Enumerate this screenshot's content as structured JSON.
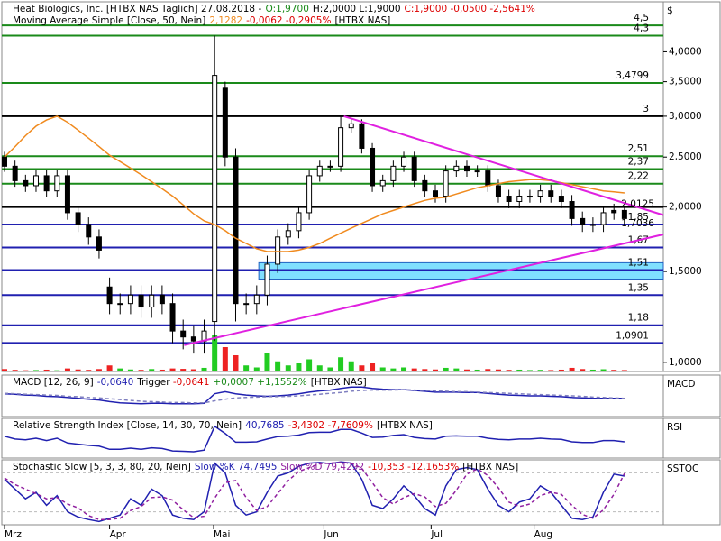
{
  "chart_data": [
    {
      "type": "candlestick",
      "log": true,
      "panel_label": "$",
      "header": [
        [
          {
            "text": "Heat Biologics, Inc. [HTBX NAS  Täglich] 27.08.2018 -",
            "color": "#000000"
          },
          {
            "text": "O:1,9700",
            "color": "#1a8a1a"
          },
          {
            "text": "H:2,0000 L:1,9000",
            "color": "#000000"
          },
          {
            "text": "C:1,9000 -0,0500 -2,5641%",
            "color": "#dd0000"
          }
        ],
        [
          {
            "text": "Moving Average Simple [Close, 50, Nein]",
            "color": "#000000"
          },
          {
            "text": "2,1282",
            "color": "#f08a1e"
          },
          {
            "text": "-0,0062 -0,2905%",
            "color": "#dd0000"
          },
          {
            "text": "[HTBX NAS]",
            "color": "#000000"
          }
        ]
      ],
      "x": [
        0,
        1,
        2,
        3,
        4,
        5,
        6,
        7,
        8,
        9,
        10,
        11,
        12,
        13,
        14,
        15,
        16,
        17,
        18,
        19,
        20,
        21,
        22,
        23,
        24,
        25,
        26,
        27,
        28,
        29,
        30,
        31,
        32,
        33,
        34,
        35,
        36,
        37,
        38,
        39,
        40,
        41,
        42,
        43,
        44,
        45,
        46,
        47,
        48,
        49,
        50,
        51,
        52,
        53,
        54,
        55,
        56,
        57,
        58,
        59
      ],
      "xlim": [
        0,
        62.7
      ],
      "xticks": [
        {
          "value": 0,
          "label": "Mrz"
        },
        {
          "value": 10,
          "label": "Apr"
        },
        {
          "value": 19.9,
          "label": "Mai"
        },
        {
          "value": 30.4,
          "label": "Jun"
        },
        {
          "value": 40.6,
          "label": "Jul"
        },
        {
          "value": 50.4,
          "label": "Aug"
        }
      ],
      "ylim": [
        0.96,
        5.0
      ],
      "yticks": [
        {
          "value": 1,
          "label": "1,0000"
        },
        {
          "value": 1.5,
          "label": "1,5000"
        },
        {
          "value": 2,
          "label": "2,0000"
        },
        {
          "value": 2.5,
          "label": "2,5000"
        },
        {
          "value": 3,
          "label": "3,0000"
        },
        {
          "value": 3.5,
          "label": "3,5000"
        },
        {
          "value": 4,
          "label": "4,0000"
        }
      ],
      "up_color": "#ffffff",
      "down_color": "#000000",
      "open": [
        2.5,
        2.4,
        2.25,
        2.2,
        2.3,
        2.15,
        2.3,
        1.95,
        1.85,
        1.75,
        1.4,
        1.3,
        1.3,
        1.35,
        1.28,
        1.35,
        1.3,
        1.15,
        1.12,
        1.1,
        1.2,
        3.4,
        2.5,
        1.3,
        1.3,
        1.35,
        1.55,
        1.75,
        1.8,
        1.95,
        2.3,
        2.4,
        2.4,
        2.85,
        2.9,
        2.6,
        2.2,
        2.25,
        2.4,
        2.5,
        2.25,
        2.15,
        2.1,
        2.35,
        2.4,
        2.35,
        2.35,
        2.2,
        2.1,
        2.05,
        2.1,
        2.1,
        2.15,
        2.1,
        2.05,
        1.9,
        1.85,
        1.85,
        1.97,
        1.97
      ],
      "high": [
        2.56,
        2.46,
        2.31,
        2.36,
        2.36,
        2.36,
        2.36,
        2.01,
        1.91,
        1.81,
        1.46,
        1.36,
        1.41,
        1.41,
        1.41,
        1.41,
        1.36,
        1.21,
        1.18,
        1.21,
        4.3,
        3.5,
        2.6,
        1.36,
        1.41,
        1.61,
        1.81,
        1.86,
        2.01,
        2.36,
        2.46,
        2.46,
        3.0,
        2.96,
        2.96,
        2.66,
        2.31,
        2.46,
        2.56,
        2.56,
        2.31,
        2.21,
        2.41,
        2.46,
        2.46,
        2.41,
        2.41,
        2.26,
        2.16,
        2.16,
        2.16,
        2.21,
        2.21,
        2.16,
        2.11,
        1.96,
        1.91,
        2.01,
        2.03,
        2.0
      ],
      "low": [
        2.34,
        2.19,
        2.14,
        2.14,
        2.09,
        2.09,
        1.89,
        1.79,
        1.69,
        1.59,
        1.24,
        1.24,
        1.24,
        1.22,
        1.22,
        1.24,
        1.09,
        1.06,
        1.04,
        1.04,
        1.1,
        2.4,
        1.2,
        1.24,
        1.24,
        1.29,
        1.49,
        1.69,
        1.74,
        1.89,
        2.24,
        2.34,
        2.34,
        2.79,
        2.54,
        2.14,
        2.14,
        2.19,
        2.34,
        2.19,
        2.09,
        2.04,
        2.04,
        2.29,
        2.29,
        2.29,
        2.14,
        2.04,
        1.99,
        1.99,
        2.04,
        2.04,
        2.04,
        1.99,
        1.84,
        1.79,
        1.79,
        1.79,
        1.89,
        1.9
      ],
      "close": [
        2.4,
        2.25,
        2.2,
        2.3,
        2.15,
        2.3,
        1.95,
        1.85,
        1.75,
        1.65,
        1.3,
        1.3,
        1.35,
        1.28,
        1.35,
        1.3,
        1.15,
        1.12,
        1.1,
        1.15,
        3.6,
        2.5,
        1.3,
        1.3,
        1.35,
        1.55,
        1.75,
        1.8,
        1.95,
        2.3,
        2.4,
        2.4,
        2.85,
        2.9,
        2.6,
        2.2,
        2.25,
        2.4,
        2.5,
        2.25,
        2.15,
        2.1,
        2.35,
        2.4,
        2.35,
        2.35,
        2.2,
        2.1,
        2.05,
        2.1,
        2.1,
        2.15,
        2.1,
        2.05,
        1.9,
        1.85,
        1.85,
        1.95,
        1.95,
        1.9
      ],
      "volume": [
        1.2,
        0.8,
        0.6,
        0.7,
        0.9,
        0.6,
        1.5,
        1.0,
        0.8,
        1.2,
        3.0,
        1.5,
        1.0,
        0.8,
        1.2,
        0.9,
        1.5,
        1.3,
        1.1,
        1.8,
        18,
        12,
        8,
        3,
        2,
        9,
        5,
        3,
        4,
        6,
        3,
        2,
        7,
        5,
        3,
        4,
        2,
        1.5,
        2,
        1.5,
        1.2,
        1,
        1.8,
        1.5,
        1,
        0.9,
        1.2,
        1,
        0.8,
        0.9,
        0.7,
        0.8,
        0.7,
        0.9,
        1.8,
        1.2,
        0.9,
        1.1,
        0.8,
        0.7
      ],
      "vlim": [
        0,
        20
      ],
      "volume_up_color": "#22cc22",
      "volume_down_color": "#ee2222",
      "series": [
        {
          "name": "Moving Average Simple",
          "color": "#f08a1e",
          "values": [
            2.5,
            2.62,
            2.75,
            2.87,
            2.95,
            3.0,
            2.92,
            2.82,
            2.72,
            2.62,
            2.52,
            2.45,
            2.38,
            2.31,
            2.24,
            2.17,
            2.1,
            2.02,
            1.94,
            1.88,
            1.85,
            1.8,
            1.74,
            1.7,
            1.66,
            1.64,
            1.64,
            1.64,
            1.65,
            1.67,
            1.7,
            1.74,
            1.78,
            1.82,
            1.86,
            1.9,
            1.94,
            1.97,
            2.0,
            2.03,
            2.06,
            2.08,
            2.09,
            2.12,
            2.15,
            2.18,
            2.2,
            2.22,
            2.24,
            2.25,
            2.26,
            2.26,
            2.25,
            2.23,
            2.21,
            2.19,
            2.17,
            2.15,
            2.14,
            2.13
          ]
        }
      ],
      "levels": [
        {
          "value": 4.5,
          "label": "4,5",
          "color": "#1a8a1a"
        },
        {
          "value": 4.3,
          "label": "4,3",
          "color": "#1a8a1a"
        },
        {
          "value": 3.4799,
          "label": "3,4799",
          "color": "#1a8a1a"
        },
        {
          "value": 3,
          "label": "3",
          "color": "#000000"
        },
        {
          "value": 2.51,
          "label": "2,51",
          "color": "#1a8a1a"
        },
        {
          "value": 2.37,
          "label": "2,37",
          "color": "#1a8a1a"
        },
        {
          "value": 2.22,
          "label": "2,22",
          "color": "#1a8a1a"
        },
        {
          "value": 2,
          "color": "#000000"
        },
        {
          "value": 1.85,
          "label": "1,85",
          "color": "#2020b0"
        },
        {
          "value": 1.67,
          "label": "1,67",
          "color": "#2020b0"
        },
        {
          "value": 1.51,
          "label": "1,51",
          "color": "#2020b0"
        },
        {
          "value": 1.35,
          "label": "1,35",
          "color": "#2020b0"
        },
        {
          "value": 1.18,
          "label": "1,18",
          "color": "#2020b0"
        },
        {
          "value": 1.0901,
          "label": "1,0901",
          "color": "#2020b0"
        }
      ],
      "zones": [
        {
          "x": [
            24.2,
            62.7
          ],
          "values": [
            1.45,
            1.56
          ],
          "color": "#80e0ff"
        }
      ],
      "trendlines": [
        {
          "label": "2,0125",
          "color": "#e020e0",
          "x": [
            32.3,
            62.7
          ],
          "values": [
            3.0,
            1.93
          ]
        },
        {
          "label": "1,7036",
          "color": "#e020e0",
          "x": [
            17.1,
            62.7
          ],
          "values": [
            1.08,
            1.77
          ]
        }
      ]
    },
    {
      "type": "line",
      "panel_label": "MACD",
      "header": [
        [
          {
            "text": "MACD [12, 26, 9]",
            "color": "#000000"
          },
          {
            "text": "-0,0640",
            "color": "#2020b0"
          },
          {
            "text": "Trigger",
            "color": "#000000"
          },
          {
            "text": "-0,0641",
            "color": "#dd0000"
          },
          {
            "text": "+0,0007 +1,1552%",
            "color": "#1a8a1a"
          },
          {
            "text": "[HTBX NAS]",
            "color": "#000000"
          }
        ]
      ],
      "ylim": [
        -0.5,
        0.5
      ],
      "series": [
        {
          "name": "MACD",
          "color": "#2020b0",
          "values": [
            0.05,
            0.04,
            0.02,
            0.01,
            -0.01,
            -0.02,
            -0.04,
            -0.06,
            -0.08,
            -0.1,
            -0.14,
            -0.17,
            -0.18,
            -0.19,
            -0.18,
            -0.18,
            -0.19,
            -0.19,
            -0.19,
            -0.18,
            0.05,
            0.1,
            0.05,
            0.02,
            0.0,
            -0.01,
            0.0,
            0.02,
            0.05,
            0.09,
            0.12,
            0.14,
            0.18,
            0.21,
            0.21,
            0.18,
            0.16,
            0.15,
            0.15,
            0.13,
            0.11,
            0.09,
            0.09,
            0.09,
            0.08,
            0.08,
            0.06,
            0.04,
            0.02,
            0.01,
            0.0,
            0.0,
            -0.01,
            -0.02,
            -0.04,
            -0.05,
            -0.06,
            -0.06,
            -0.06,
            -0.06
          ]
        },
        {
          "name": "Trigger",
          "color": "#8080c0",
          "dash": true,
          "values": [
            0.06,
            0.05,
            0.04,
            0.03,
            0.02,
            0.01,
            -0.01,
            -0.02,
            -0.04,
            -0.05,
            -0.07,
            -0.09,
            -0.11,
            -0.13,
            -0.14,
            -0.15,
            -0.16,
            -0.16,
            -0.17,
            -0.17,
            -0.12,
            -0.08,
            -0.05,
            -0.04,
            -0.03,
            -0.02,
            -0.02,
            -0.01,
            0.0,
            0.02,
            0.04,
            0.06,
            0.08,
            0.11,
            0.13,
            0.14,
            0.14,
            0.14,
            0.15,
            0.14,
            0.13,
            0.12,
            0.11,
            0.1,
            0.1,
            0.09,
            0.08,
            0.07,
            0.06,
            0.05,
            0.04,
            0.03,
            0.02,
            0.01,
            0.0,
            -0.01,
            -0.03,
            -0.04,
            -0.05,
            -0.06
          ]
        }
      ]
    },
    {
      "type": "line",
      "panel_label": "RSI",
      "header": [
        [
          {
            "text": "Relative Strength Index [Close, 14, 30, 70, Nein]",
            "color": "#000000"
          },
          {
            "text": "40,7685",
            "color": "#2020b0"
          },
          {
            "text": "-3,4302 -7,7609%",
            "color": "#dd0000"
          },
          {
            "text": "[HTBX NAS]",
            "color": "#000000"
          }
        ]
      ],
      "ylim": [
        0,
        100
      ],
      "series": [
        {
          "name": "RSI",
          "color": "#2020b0",
          "values": [
            55,
            48,
            46,
            50,
            44,
            50,
            38,
            35,
            32,
            30,
            22,
            22,
            25,
            22,
            26,
            24,
            18,
            17,
            16,
            20,
            80,
            62,
            40,
            40,
            41,
            48,
            54,
            55,
            58,
            64,
            65,
            65,
            72,
            72,
            63,
            52,
            53,
            57,
            59,
            52,
            49,
            48,
            55,
            56,
            55,
            55,
            50,
            47,
            46,
            48,
            48,
            50,
            48,
            47,
            41,
            39,
            39,
            44,
            44,
            41
          ]
        }
      ]
    },
    {
      "type": "line",
      "panel_label": "SSTOC",
      "header": [
        [
          {
            "text": "Stochastic Slow [5, 3, 3, 80, 20, Nein]",
            "color": "#000000"
          },
          {
            "text": "Slow %K 74,7495",
            "color": "#2020b0"
          },
          {
            "text": "Slow %D 79,4292",
            "color": "#9020a0"
          },
          {
            "text": "-10,353 -12,1653%",
            "color": "#dd0000"
          },
          {
            "text": "[HTBX NAS]",
            "color": "#000000"
          }
        ]
      ],
      "ylim": [
        0,
        100
      ],
      "levels": [
        {
          "value": 20,
          "color": "#bbbbbb"
        },
        {
          "value": 80,
          "color": "#bbbbbb"
        }
      ],
      "series": [
        {
          "name": "Slow %K",
          "color": "#2020b0",
          "values": [
            70,
            55,
            40,
            50,
            30,
            45,
            20,
            12,
            8,
            5,
            10,
            15,
            40,
            30,
            55,
            45,
            15,
            10,
            8,
            20,
            95,
            80,
            30,
            15,
            20,
            50,
            75,
            80,
            90,
            95,
            96,
            94,
            97,
            95,
            70,
            30,
            25,
            40,
            60,
            45,
            25,
            15,
            60,
            85,
            88,
            85,
            55,
            30,
            20,
            35,
            40,
            60,
            50,
            30,
            10,
            8,
            12,
            50,
            78,
            75
          ]
        },
        {
          "name": "Slow %D",
          "color": "#9020a0",
          "dash": true,
          "values": [
            72,
            62,
            55,
            48,
            40,
            42,
            32,
            26,
            14,
            8,
            8,
            10,
            22,
            28,
            42,
            43,
            38,
            23,
            11,
            13,
            41,
            65,
            68,
            42,
            22,
            28,
            48,
            68,
            82,
            88,
            94,
            95,
            96,
            95,
            87,
            65,
            42,
            32,
            42,
            48,
            43,
            28,
            33,
            53,
            78,
            86,
            76,
            57,
            35,
            28,
            32,
            45,
            50,
            47,
            30,
            16,
            10,
            23,
            47,
            79
          ]
        }
      ]
    }
  ]
}
